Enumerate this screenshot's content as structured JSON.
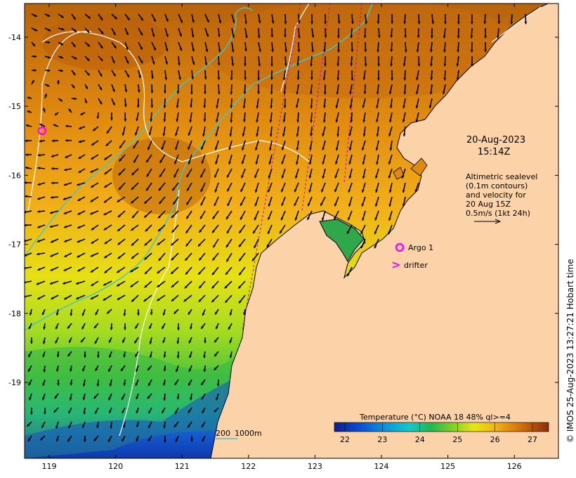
{
  "map": {
    "title_date": "20-Aug-2023",
    "title_time": "15:14Z",
    "lat_ticks": [
      "-14",
      "-15",
      "-16",
      "-17",
      "-18",
      "-19"
    ],
    "lon_ticks": [
      "119",
      "120",
      "121",
      "122",
      "123",
      "124",
      "125",
      "126"
    ],
    "altimetry_note": [
      "Altimetric sealevel",
      "(0.1m contours)",
      "and velocity for",
      "20 Aug 15Z",
      "0.5m/s (1kt 24h)"
    ],
    "argo_label": "Argo 1",
    "drifter_label": "drifter",
    "drifter_glyph": ">",
    "bathy_label_200": "200",
    "bathy_label_1000": "1000m",
    "credit": "© IMOS 25-Aug-2023 13:27:21 Hobart time",
    "colorbar": {
      "title": "Temperature (°C) NOAA 18 48% ql>=4",
      "ticks": [
        "22",
        "23",
        "24",
        "25",
        "26",
        "27"
      ]
    },
    "colors": {
      "land": "#fcd2a8",
      "bathy_contour": "#40c8c8",
      "track": "#c000c0",
      "marker": "#ff00ff",
      "arrow": "#000000"
    },
    "colormap": [
      "#0a1e8c",
      "#0a3cc8",
      "#0a8cdc",
      "#14c8c8",
      "#20b860",
      "#50c830",
      "#a0dc1e",
      "#e6e614",
      "#f0b414",
      "#e68c0a",
      "#c8640a",
      "#9c3c0a"
    ],
    "lon_range": [
      118.6,
      126.7
    ],
    "lat_range": [
      -20.1,
      -13.5
    ]
  }
}
